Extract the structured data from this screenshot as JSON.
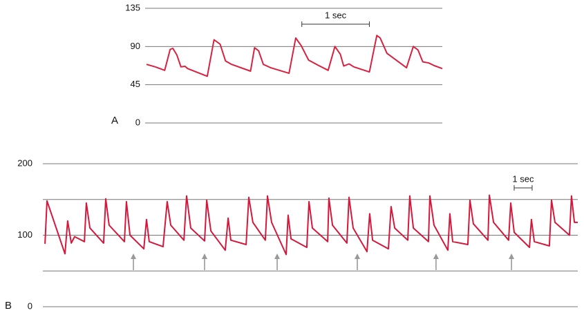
{
  "chart_data": [
    {
      "type": "line",
      "panel_label": "A",
      "color": "#d8213f",
      "xlim": [
        0,
        4.4
      ],
      "ylim": [
        0,
        135
      ],
      "yticks": [
        0,
        45,
        90,
        135
      ],
      "gridlines": [
        0,
        45,
        90,
        135
      ],
      "scale_bar": {
        "x": 2.32,
        "length": 1,
        "label": "1 sec"
      },
      "x": [
        0.02,
        0.15,
        0.29,
        0.37,
        0.41,
        0.47,
        0.53,
        0.59,
        0.63,
        0.92,
        1.02,
        1.11,
        1.19,
        1.28,
        1.56,
        1.62,
        1.68,
        1.75,
        1.86,
        2.13,
        2.23,
        2.31,
        2.42,
        2.56,
        2.71,
        2.81,
        2.89,
        2.94,
        3.02,
        3.09,
        3.32,
        3.43,
        3.48,
        3.58,
        3.87,
        3.97,
        4.04,
        4.11,
        4.2,
        4.28,
        4.4
      ],
      "values": [
        69,
        66,
        62,
        86.6,
        87.8,
        80,
        66,
        66.7,
        64,
        55,
        98,
        92.7,
        73,
        69,
        61,
        88.6,
        85,
        69,
        65,
        58.5,
        100,
        91,
        74,
        68,
        62,
        90,
        81,
        67,
        69.5,
        66,
        60,
        103,
        100,
        82,
        65,
        90,
        86,
        72,
        70.6,
        67.5,
        64
      ]
    },
    {
      "type": "line",
      "panel_label": "B",
      "color": "#d6173a",
      "xlim": [
        0,
        29.77
      ],
      "ylim": [
        0,
        200
      ],
      "yticks": [
        0,
        100,
        200
      ],
      "gridlines": [
        0,
        50,
        100,
        150,
        200
      ],
      "scale_bar": {
        "x": 26.23,
        "length": 1,
        "label": "1 sec"
      },
      "arrows_x": [
        5.04,
        9.0,
        13.04,
        17.5,
        21.88,
        26.08
      ],
      "x": [
        0.12,
        0.23,
        1.23,
        1.38,
        1.58,
        1.77,
        2.31,
        2.42,
        2.62,
        3.38,
        3.5,
        3.69,
        4.54,
        4.65,
        4.85,
        5.62,
        5.77,
        5.92,
        6.69,
        6.92,
        7.12,
        7.85,
        8.0,
        8.23,
        9.0,
        9.12,
        9.35,
        10.15,
        10.31,
        10.46,
        11.31,
        11.46,
        11.69,
        12.38,
        12.5,
        12.73,
        13.54,
        13.65,
        13.81,
        14.69,
        14.81,
        15.0,
        15.85,
        15.92,
        16.12,
        16.92,
        17.04,
        17.27,
        18.04,
        18.19,
        18.35,
        19.23,
        19.38,
        19.58,
        20.31,
        20.42,
        20.62,
        21.46,
        21.54,
        21.77,
        22.54,
        22.65,
        22.81,
        23.65,
        23.77,
        23.96,
        24.77,
        24.85,
        25.08,
        25.92,
        26.04,
        26.23,
        27.08,
        27.19,
        27.35,
        28.19,
        28.31,
        28.5,
        29.31,
        29.42,
        29.58,
        29.77
      ],
      "values": [
        88,
        148,
        74,
        120,
        89,
        98,
        91,
        145,
        110,
        89,
        151,
        114,
        91,
        147,
        100,
        81,
        122,
        91,
        84,
        147,
        114,
        93,
        155,
        110,
        92,
        149,
        106,
        79,
        124,
        93,
        87,
        153,
        118,
        93,
        155,
        118,
        73,
        128,
        95,
        83,
        147,
        110,
        91,
        152,
        114,
        89,
        153,
        110,
        77,
        130,
        93,
        81,
        140,
        110,
        93,
        155,
        110,
        91,
        155,
        114,
        79,
        130,
        91,
        87,
        149,
        116,
        93,
        156,
        118,
        93,
        145,
        104,
        83,
        122,
        91,
        85,
        149,
        118,
        100,
        155,
        118,
        118
      ]
    }
  ]
}
